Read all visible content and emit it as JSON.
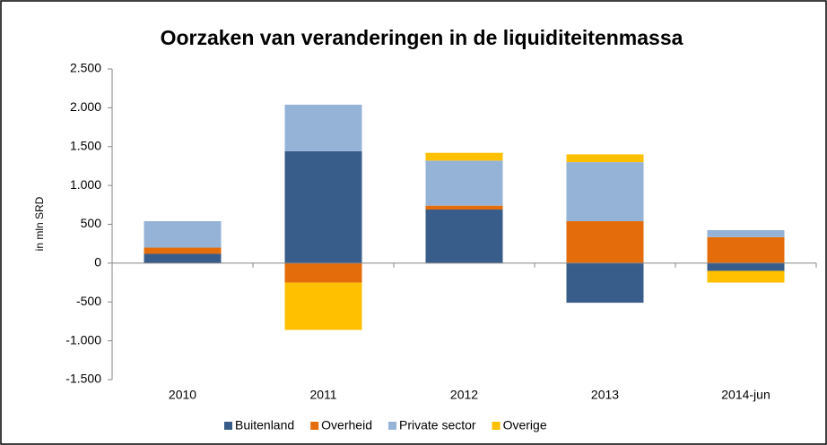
{
  "chart_data": {
    "type": "stacked-bar",
    "title": "Oorzaken van veranderingen in de liquiditeitenmassa",
    "y_label": "in mln SRD",
    "categories": [
      "2010",
      "2011",
      "2012",
      "2013",
      "2014-jun"
    ],
    "series": [
      {
        "name": "Buitenland",
        "color": "#385d8a",
        "values": [
          120,
          1440,
          690,
          -510,
          -100
        ]
      },
      {
        "name": "Overheid",
        "color": "#e46c0a",
        "values": [
          80,
          -250,
          50,
          540,
          335
        ]
      },
      {
        "name": "Private sector",
        "color": "#95b3d7",
        "values": [
          340,
          600,
          580,
          760,
          90
        ]
      },
      {
        "name": "Overige",
        "color": "#ffc000",
        "values": [
          0,
          -610,
          100,
          100,
          -150
        ]
      }
    ],
    "ylim": [
      -1500,
      2500
    ],
    "yticks": [
      {
        "value": -1500,
        "label": "-1.500"
      },
      {
        "value": -1000,
        "label": "-1.000"
      },
      -500,
      0,
      500,
      {
        "value": 1000,
        "label": "1.000"
      },
      {
        "value": 1500,
        "label": "1.500"
      },
      {
        "value": 2000,
        "label": "2.000"
      },
      {
        "value": 2500,
        "label": "2.500"
      }
    ],
    "legend": "bottom"
  }
}
